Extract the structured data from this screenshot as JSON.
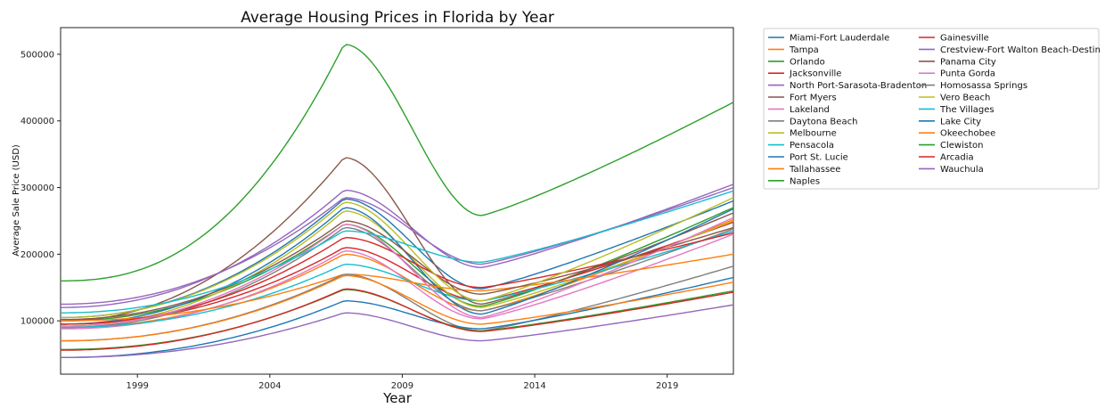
{
  "chart_data": {
    "type": "line",
    "title": "Average Housing Prices in Florida by Year",
    "xlabel": "Year",
    "ylabel": "Average Sale Price (USD)",
    "xlim": [
      1996.1,
      2021.5
    ],
    "ylim": [
      20000,
      540000
    ],
    "xticks": [
      1999,
      2004,
      2009,
      2014,
      2019
    ],
    "yticks": [
      100000,
      200000,
      300000,
      400000,
      500000
    ],
    "grid": false,
    "legend_position": "outside-right",
    "legend_columns": 2,
    "peak_year": 2006.8,
    "trough_year": 2012.0,
    "series": [
      {
        "name": "Miami-Fort Lauderdale",
        "color": "#1f77b4",
        "x": [
          1996.1,
          2006.8,
          2012.0,
          2021.5
        ],
        "y": [
          105000,
          283000,
          148000,
          280000
        ]
      },
      {
        "name": "Tampa",
        "color": "#ff7f0e",
        "x": [
          1996.1,
          2006.8,
          2012.0,
          2021.5
        ],
        "y": [
          90000,
          200000,
          115000,
          252000
        ]
      },
      {
        "name": "Orlando",
        "color": "#2ca02c",
        "x": [
          1996.1,
          2006.8,
          2012.0,
          2021.5
        ],
        "y": [
          100000,
          245000,
          122000,
          270000
        ]
      },
      {
        "name": "Jacksonville",
        "color": "#d62728",
        "x": [
          1996.1,
          2006.8,
          2012.0,
          2021.5
        ],
        "y": [
          95000,
          210000,
          130000,
          248000
        ]
      },
      {
        "name": "North Port-Sarasota-Bradenton",
        "color": "#9467bd",
        "x": [
          1996.1,
          2006.8,
          2012.0,
          2021.5
        ],
        "y": [
          120000,
          296000,
          180000,
          305000
        ]
      },
      {
        "name": "Fort Myers",
        "color": "#8c564b",
        "x": [
          1996.1,
          2006.8,
          2012.0,
          2021.5
        ],
        "y": [
          100000,
          345000,
          125000,
          262000
        ]
      },
      {
        "name": "Lakeland",
        "color": "#e377c2",
        "x": [
          1996.1,
          2006.8,
          2012.0,
          2021.5
        ],
        "y": [
          88000,
          205000,
          103000,
          230000
        ]
      },
      {
        "name": "Daytona Beach",
        "color": "#7f7f7f",
        "x": [
          1996.1,
          2006.8,
          2012.0,
          2021.5
        ],
        "y": [
          90000,
          240000,
          115000,
          238000
        ]
      },
      {
        "name": "Melbourne",
        "color": "#bcbd22",
        "x": [
          1996.1,
          2006.8,
          2012.0,
          2021.5
        ],
        "y": [
          92000,
          265000,
          120000,
          250000
        ]
      },
      {
        "name": "Pensacola",
        "color": "#17becf",
        "x": [
          1996.1,
          2006.8,
          2012.0,
          2021.5
        ],
        "y": [
          90000,
          185000,
          130000,
          235000
        ]
      },
      {
        "name": "Port St. Lucie",
        "color": "#1f77b4",
        "x": [
          1996.1,
          2006.8,
          2012.0,
          2021.5
        ],
        "y": [
          95000,
          270000,
          110000,
          268000
        ]
      },
      {
        "name": "Tallahassee",
        "color": "#ff7f0e",
        "x": [
          1996.1,
          2006.8,
          2012.0,
          2021.5
        ],
        "y": [
          100000,
          170000,
          145000,
          200000
        ]
      },
      {
        "name": "Naples",
        "color": "#2ca02c",
        "x": [
          1996.1,
          2006.8,
          2012.0,
          2021.5
        ],
        "y": [
          160000,
          515000,
          258000,
          428000
        ]
      },
      {
        "name": "Gainesville",
        "color": "#d62728",
        "x": [
          1996.1,
          2006.8,
          2012.0,
          2021.5
        ],
        "y": [
          95000,
          225000,
          150000,
          232000
        ]
      },
      {
        "name": "Crestview-Fort Walton Beach-Destin",
        "color": "#9467bd",
        "x": [
          1996.1,
          2006.8,
          2012.0,
          2021.5
        ],
        "y": [
          125000,
          285000,
          185000,
          300000
        ]
      },
      {
        "name": "Panama City",
        "color": "#8c564b",
        "x": [
          1996.1,
          2006.8,
          2012.0,
          2021.5
        ],
        "y": [
          102000,
          250000,
          140000,
          240000
        ]
      },
      {
        "name": "Punta Gorda",
        "color": "#e377c2",
        "x": [
          1996.1,
          2006.8,
          2012.0,
          2021.5
        ],
        "y": [
          92000,
          245000,
          105000,
          255000
        ]
      },
      {
        "name": "Homosassa Springs",
        "color": "#7f7f7f",
        "x": [
          1996.1,
          2006.8,
          2012.0,
          2021.5
        ],
        "y": [
          70000,
          170000,
          85000,
          182000
        ]
      },
      {
        "name": "Vero Beach",
        "color": "#bcbd22",
        "x": [
          1996.1,
          2006.8,
          2012.0,
          2021.5
        ],
        "y": [
          105000,
          278000,
          130000,
          285000
        ]
      },
      {
        "name": "The Villages",
        "color": "#17becf",
        "x": [
          1996.1,
          2006.8,
          2012.0,
          2021.5
        ],
        "y": [
          112000,
          235000,
          188000,
          295000
        ]
      },
      {
        "name": "Lake City",
        "color": "#1f77b4",
        "x": [
          1996.1,
          2006.8,
          2012.0,
          2021.5
        ],
        "y": [
          45000,
          130000,
          88000,
          165000
        ]
      },
      {
        "name": "Okeechobee",
        "color": "#ff7f0e",
        "x": [
          1996.1,
          2006.8,
          2012.0,
          2021.5
        ],
        "y": [
          70000,
          168000,
          95000,
          158000
        ]
      },
      {
        "name": "Clewiston",
        "color": "#2ca02c",
        "x": [
          1996.1,
          2006.8,
          2012.0,
          2021.5
        ],
        "y": [
          57000,
          147000,
          85000,
          145000
        ]
      },
      {
        "name": "Arcadia",
        "color": "#d62728",
        "x": [
          1996.1,
          2006.8,
          2012.0,
          2021.5
        ],
        "y": [
          56000,
          148000,
          84000,
          143000
        ]
      },
      {
        "name": "Wauchula",
        "color": "#9467bd",
        "x": [
          1996.1,
          2006.8,
          2012.0,
          2021.5
        ],
        "y": [
          45000,
          112000,
          70000,
          124000
        ]
      }
    ]
  }
}
